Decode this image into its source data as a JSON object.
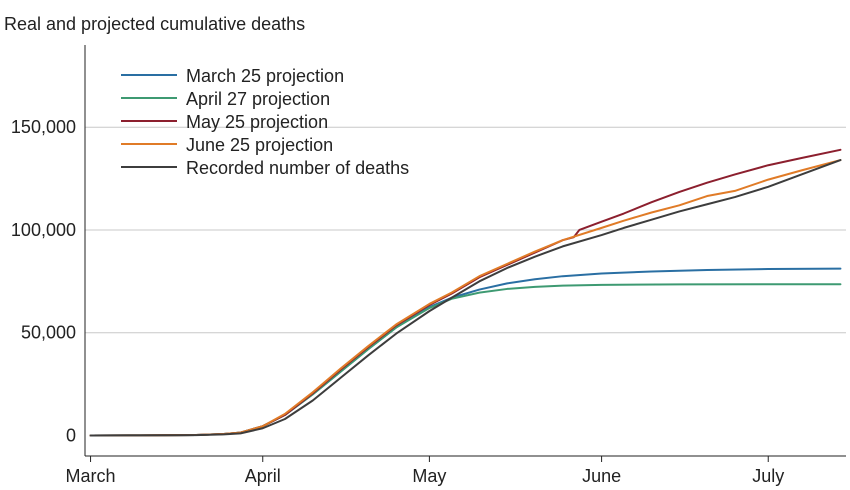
{
  "chart_data": {
    "type": "line",
    "title": "Real and projected cumulative deaths",
    "xlabel": "",
    "ylabel": "",
    "ylim": [
      -10000,
      190000
    ],
    "xlim": [
      "2020-02-29",
      "2020-07-15"
    ],
    "grid": "horizontal",
    "legend_position": "top-left",
    "x_ticks": [
      {
        "date": "2020-03-01",
        "label": "March"
      },
      {
        "date": "2020-04-01",
        "label": "April"
      },
      {
        "date": "2020-05-01",
        "label": "May"
      },
      {
        "date": "2020-06-01",
        "label": "June"
      },
      {
        "date": "2020-07-01",
        "label": "July"
      }
    ],
    "y_ticks": [
      {
        "value": 0,
        "label": "0"
      },
      {
        "value": 50000,
        "label": "50,000"
      },
      {
        "value": 100000,
        "label": "100,000"
      },
      {
        "value": 150000,
        "label": "150,000"
      }
    ],
    "series": [
      {
        "name": "March 25 projection",
        "color": "#2a6fa3",
        "points": [
          [
            "2020-03-01",
            0
          ],
          [
            "2020-03-10",
            50
          ],
          [
            "2020-03-20",
            200
          ],
          [
            "2020-03-25",
            700
          ],
          [
            "2020-03-28",
            1400
          ],
          [
            "2020-04-01",
            4500
          ],
          [
            "2020-04-05",
            10000
          ],
          [
            "2020-04-10",
            20000
          ],
          [
            "2020-04-15",
            31000
          ],
          [
            "2020-04-20",
            42000
          ],
          [
            "2020-04-25",
            52500
          ],
          [
            "2020-05-01",
            62500
          ],
          [
            "2020-05-05",
            67000
          ],
          [
            "2020-05-10",
            71000
          ],
          [
            "2020-05-15",
            74000
          ],
          [
            "2020-05-20",
            76000
          ],
          [
            "2020-05-25",
            77500
          ],
          [
            "2020-06-01",
            78800
          ],
          [
            "2020-06-10",
            79800
          ],
          [
            "2020-06-20",
            80500
          ],
          [
            "2020-07-01",
            81000
          ],
          [
            "2020-07-14",
            81200
          ]
        ]
      },
      {
        "name": "April 27 projection",
        "color": "#3e9a72",
        "points": [
          [
            "2020-03-01",
            0
          ],
          [
            "2020-03-10",
            50
          ],
          [
            "2020-03-20",
            200
          ],
          [
            "2020-03-25",
            700
          ],
          [
            "2020-03-28",
            1400
          ],
          [
            "2020-04-01",
            4500
          ],
          [
            "2020-04-05",
            10000
          ],
          [
            "2020-04-10",
            20000
          ],
          [
            "2020-04-15",
            31000
          ],
          [
            "2020-04-20",
            42000
          ],
          [
            "2020-04-25",
            52500
          ],
          [
            "2020-05-01",
            62000
          ],
          [
            "2020-05-05",
            66500
          ],
          [
            "2020-05-10",
            69500
          ],
          [
            "2020-05-15",
            71300
          ],
          [
            "2020-05-20",
            72300
          ],
          [
            "2020-05-25",
            72900
          ],
          [
            "2020-06-01",
            73300
          ],
          [
            "2020-06-15",
            73500
          ],
          [
            "2020-07-01",
            73600
          ],
          [
            "2020-07-14",
            73600
          ]
        ]
      },
      {
        "name": "May 25 projection",
        "color": "#8c1f2e",
        "points": [
          [
            "2020-03-01",
            0
          ],
          [
            "2020-03-10",
            50
          ],
          [
            "2020-03-20",
            200
          ],
          [
            "2020-03-25",
            700
          ],
          [
            "2020-03-28",
            1400
          ],
          [
            "2020-04-01",
            4500
          ],
          [
            "2020-04-05",
            10000
          ],
          [
            "2020-04-10",
            20500
          ],
          [
            "2020-04-15",
            32000
          ],
          [
            "2020-04-20",
            43000
          ],
          [
            "2020-04-25",
            53500
          ],
          [
            "2020-05-01",
            63500
          ],
          [
            "2020-05-05",
            69000
          ],
          [
            "2020-05-10",
            77000
          ],
          [
            "2020-05-15",
            83000
          ],
          [
            "2020-05-20",
            89000
          ],
          [
            "2020-05-25",
            95000
          ],
          [
            "2020-05-27",
            96500
          ],
          [
            "2020-05-28",
            100000
          ],
          [
            "2020-06-01",
            104000
          ],
          [
            "2020-06-05",
            108000
          ],
          [
            "2020-06-10",
            113500
          ],
          [
            "2020-06-15",
            118500
          ],
          [
            "2020-06-20",
            123000
          ],
          [
            "2020-06-25",
            127000
          ],
          [
            "2020-07-01",
            131500
          ],
          [
            "2020-07-07",
            135000
          ],
          [
            "2020-07-14",
            139000
          ]
        ]
      },
      {
        "name": "June 25 projection",
        "color": "#e07b27",
        "points": [
          [
            "2020-03-01",
            0
          ],
          [
            "2020-03-10",
            50
          ],
          [
            "2020-03-20",
            200
          ],
          [
            "2020-03-25",
            700
          ],
          [
            "2020-03-28",
            1400
          ],
          [
            "2020-04-01",
            4500
          ],
          [
            "2020-04-05",
            10500
          ],
          [
            "2020-04-10",
            21000
          ],
          [
            "2020-04-15",
            32500
          ],
          [
            "2020-04-20",
            43500
          ],
          [
            "2020-04-25",
            54000
          ],
          [
            "2020-05-01",
            64000
          ],
          [
            "2020-05-05",
            69500
          ],
          [
            "2020-05-10",
            77500
          ],
          [
            "2020-05-15",
            83500
          ],
          [
            "2020-05-20",
            89500
          ],
          [
            "2020-05-25",
            95000
          ],
          [
            "2020-06-01",
            101000
          ],
          [
            "2020-06-05",
            104500
          ],
          [
            "2020-06-10",
            108500
          ],
          [
            "2020-06-15",
            112000
          ],
          [
            "2020-06-20",
            116500
          ],
          [
            "2020-06-25",
            119000
          ],
          [
            "2020-07-01",
            124500
          ],
          [
            "2020-07-07",
            129000
          ],
          [
            "2020-07-14",
            134000
          ]
        ]
      },
      {
        "name": "Recorded number of deaths",
        "color": "#3d3d3d",
        "points": [
          [
            "2020-03-01",
            0
          ],
          [
            "2020-03-10",
            30
          ],
          [
            "2020-03-20",
            150
          ],
          [
            "2020-03-25",
            500
          ],
          [
            "2020-03-28",
            1000
          ],
          [
            "2020-04-01",
            3500
          ],
          [
            "2020-04-05",
            8000
          ],
          [
            "2020-04-10",
            17000
          ],
          [
            "2020-04-15",
            28000
          ],
          [
            "2020-04-20",
            39000
          ],
          [
            "2020-04-25",
            49500
          ],
          [
            "2020-05-01",
            60500
          ],
          [
            "2020-05-05",
            67000
          ],
          [
            "2020-05-10",
            75000
          ],
          [
            "2020-05-15",
            81500
          ],
          [
            "2020-05-20",
            87000
          ],
          [
            "2020-05-25",
            92000
          ],
          [
            "2020-06-01",
            97500
          ],
          [
            "2020-06-05",
            101000
          ],
          [
            "2020-06-10",
            105000
          ],
          [
            "2020-06-15",
            109000
          ],
          [
            "2020-06-20",
            112500
          ],
          [
            "2020-06-25",
            116000
          ],
          [
            "2020-07-01",
            121000
          ],
          [
            "2020-07-07",
            127000
          ],
          [
            "2020-07-14",
            134000
          ]
        ]
      }
    ]
  }
}
